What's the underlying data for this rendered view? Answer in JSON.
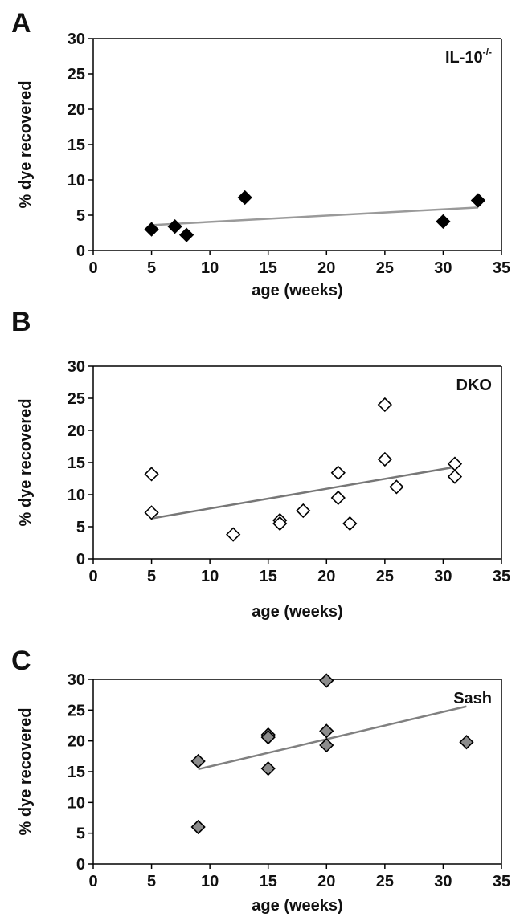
{
  "chart_data": [
    {
      "type": "scatter",
      "panel_letter": "A",
      "annotation": "IL-10",
      "annotation_sup": "-/-",
      "xlabel": "age (weeks)",
      "ylabel": "% dye recovered",
      "xlim": [
        0,
        35
      ],
      "ylim": [
        0,
        30
      ],
      "xticks": [
        0,
        5,
        10,
        15,
        20,
        25,
        30,
        35
      ],
      "yticks": [
        0,
        5,
        10,
        15,
        20,
        25,
        30
      ],
      "marker": "diamond",
      "marker_fill": "#000000",
      "marker_stroke": "#000000",
      "trendline_color": "#9a9a9a",
      "points": [
        {
          "x": 5,
          "y": 3.0
        },
        {
          "x": 7,
          "y": 3.4
        },
        {
          "x": 8,
          "y": 2.2
        },
        {
          "x": 13,
          "y": 7.5
        },
        {
          "x": 30,
          "y": 4.1
        },
        {
          "x": 33,
          "y": 7.1
        }
      ],
      "trendline": [
        [
          5,
          3.6
        ],
        [
          33,
          6.1
        ]
      ]
    },
    {
      "type": "scatter",
      "panel_letter": "B",
      "annotation": "DKO",
      "annotation_sup": "",
      "xlabel": "age (weeks)",
      "ylabel": "% dye recovered",
      "xlim": [
        0,
        35
      ],
      "ylim": [
        0,
        30
      ],
      "xticks": [
        0,
        5,
        10,
        15,
        20,
        25,
        30,
        35
      ],
      "yticks": [
        0,
        5,
        10,
        15,
        20,
        25,
        30
      ],
      "marker": "diamond",
      "marker_fill": "#ffffff",
      "marker_stroke": "#000000",
      "trendline_color": "#777777",
      "points": [
        {
          "x": 5,
          "y": 13.2
        },
        {
          "x": 5,
          "y": 7.2
        },
        {
          "x": 12,
          "y": 3.8
        },
        {
          "x": 16,
          "y": 6.0
        },
        {
          "x": 16,
          "y": 5.5
        },
        {
          "x": 18,
          "y": 7.5
        },
        {
          "x": 21,
          "y": 13.4
        },
        {
          "x": 21,
          "y": 9.5
        },
        {
          "x": 22,
          "y": 5.5
        },
        {
          "x": 25,
          "y": 24.0
        },
        {
          "x": 25,
          "y": 15.5
        },
        {
          "x": 26,
          "y": 11.2
        },
        {
          "x": 31,
          "y": 14.8
        },
        {
          "x": 31,
          "y": 12.8
        }
      ],
      "trendline": [
        [
          5,
          6.3
        ],
        [
          31,
          14.3
        ]
      ]
    },
    {
      "type": "scatter",
      "panel_letter": "C",
      "annotation": "Sash",
      "annotation_sup": "",
      "xlabel": "age (weeks)",
      "ylabel": "% dye recovered",
      "xlim": [
        0,
        35
      ],
      "ylim": [
        0,
        30
      ],
      "xticks": [
        0,
        5,
        10,
        15,
        20,
        25,
        30,
        35
      ],
      "yticks": [
        0,
        5,
        10,
        15,
        20,
        25,
        30
      ],
      "marker": "diamond",
      "marker_fill": "#8c8c8c",
      "marker_stroke": "#000000",
      "trendline_color": "#808080",
      "points": [
        {
          "x": 9,
          "y": 16.7
        },
        {
          "x": 9,
          "y": 6.0
        },
        {
          "x": 15,
          "y": 21.0
        },
        {
          "x": 15,
          "y": 20.6
        },
        {
          "x": 15,
          "y": 15.5
        },
        {
          "x": 20,
          "y": 29.8
        },
        {
          "x": 20,
          "y": 21.6
        },
        {
          "x": 20,
          "y": 19.3
        },
        {
          "x": 32,
          "y": 19.8
        }
      ],
      "trendline": [
        [
          9,
          15.4
        ],
        [
          32,
          25.6
        ]
      ]
    }
  ]
}
